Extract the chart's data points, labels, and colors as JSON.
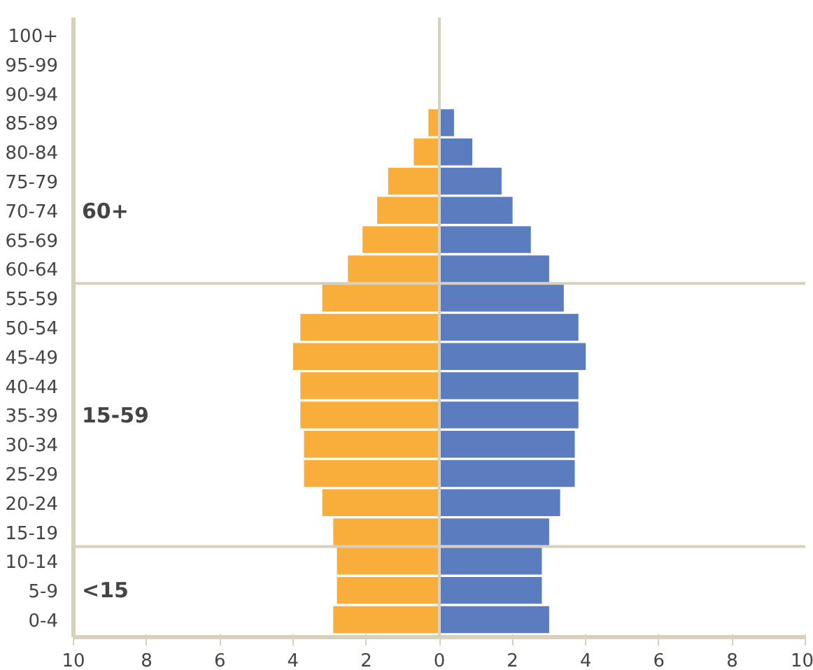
{
  "chart_data": {
    "type": "bar",
    "orientation": "horizontal",
    "categories": [
      "100+",
      "95-99",
      "90-94",
      "85-89",
      "80-84",
      "75-79",
      "70-74",
      "65-69",
      "60-64",
      "55-59",
      "50-54",
      "45-49",
      "40-44",
      "35-39",
      "30-34",
      "25-29",
      "20-24",
      "15-19",
      "10-14",
      "5-9",
      "0-4"
    ],
    "series": [
      {
        "color": "#f9ae3b",
        "values": [
          null,
          null,
          null,
          -0.3,
          -0.7,
          -1.4,
          -1.7,
          -2.1,
          -2.5,
          -3.2,
          -3.8,
          -4.0,
          -3.8,
          -3.8,
          -3.7,
          -3.7,
          -3.2,
          -2.9,
          -2.8,
          -2.8,
          -2.9
        ]
      },
      {
        "color": "#5b7dbf",
        "values": [
          null,
          null,
          null,
          0.4,
          0.9,
          1.7,
          2.0,
          2.5,
          3.0,
          3.4,
          3.8,
          4.0,
          3.8,
          3.8,
          3.7,
          3.7,
          3.3,
          3.0,
          2.8,
          2.8,
          3.0
        ]
      }
    ],
    "xlim": [
      -10,
      10
    ],
    "xticks": [
      {
        "value": -10,
        "label": "10"
      },
      {
        "value": -8,
        "label": "8"
      },
      {
        "value": -6,
        "label": "6"
      },
      {
        "value": -4,
        "label": "4"
      },
      {
        "value": -2,
        "label": "2"
      },
      0,
      2,
      4,
      6,
      8,
      10
    ],
    "ref_lines": [
      {
        "axis": "x",
        "value": 0,
        "color": "#d6d0bd"
      },
      {
        "axis": "y",
        "value": "60-64",
        "color": "#d6d0bd"
      },
      {
        "axis": "y",
        "value": "15-19",
        "color": "#d6d0bd"
      }
    ],
    "annotations": [
      "60+",
      "15-59",
      "<15"
    ],
    "stacked": true,
    "grid": false
  }
}
